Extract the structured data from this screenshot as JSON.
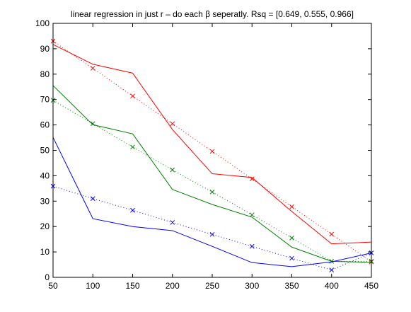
{
  "chart_data": {
    "type": "line",
    "title": "linear regression in just r –  do each β seperatly. Rsq = [0.649, 0.555, 0.966]",
    "xlabel": "",
    "ylabel": "",
    "xlim": [
      50,
      450
    ],
    "ylim": [
      0,
      100
    ],
    "xticks": [
      50,
      100,
      150,
      200,
      250,
      300,
      350,
      400,
      450
    ],
    "yticks": [
      0,
      10,
      20,
      30,
      40,
      50,
      60,
      70,
      80,
      90,
      100
    ],
    "grid": false,
    "x": [
      50,
      100,
      150,
      200,
      250,
      300,
      350,
      400,
      450
    ],
    "series": [
      {
        "color": "#ff0000",
        "style": "solid",
        "marker": "none",
        "values": [
          91.7,
          83.9,
          80.4,
          58.2,
          40.8,
          39.3,
          25.9,
          13.2,
          13.9
        ]
      },
      {
        "color": "#ff0000",
        "style": "dotted",
        "marker": "x",
        "values": [
          93.0,
          82.3,
          71.4,
          60.5,
          49.6,
          38.8,
          27.8,
          17.0,
          6.1
        ]
      },
      {
        "color": "#008000",
        "style": "solid",
        "marker": "none",
        "values": [
          75.5,
          60.1,
          56.5,
          34.6,
          28.7,
          23.7,
          11.9,
          6.3,
          5.9
        ]
      },
      {
        "color": "#008000",
        "style": "dotted",
        "marker": "x",
        "values": [
          69.7,
          60.5,
          51.3,
          42.3,
          33.6,
          24.6,
          15.5,
          6.3,
          6.3
        ]
      },
      {
        "color": "#0000ff",
        "style": "solid",
        "marker": "none",
        "values": [
          55.1,
          23.1,
          20.0,
          18.4,
          12.2,
          5.8,
          4.2,
          6.1,
          9.6
        ]
      },
      {
        "color": "#0000ff",
        "style": "dotted",
        "marker": "x",
        "values": [
          35.9,
          31.0,
          26.4,
          21.6,
          16.9,
          12.2,
          7.5,
          2.9,
          9.6
        ]
      }
    ]
  }
}
